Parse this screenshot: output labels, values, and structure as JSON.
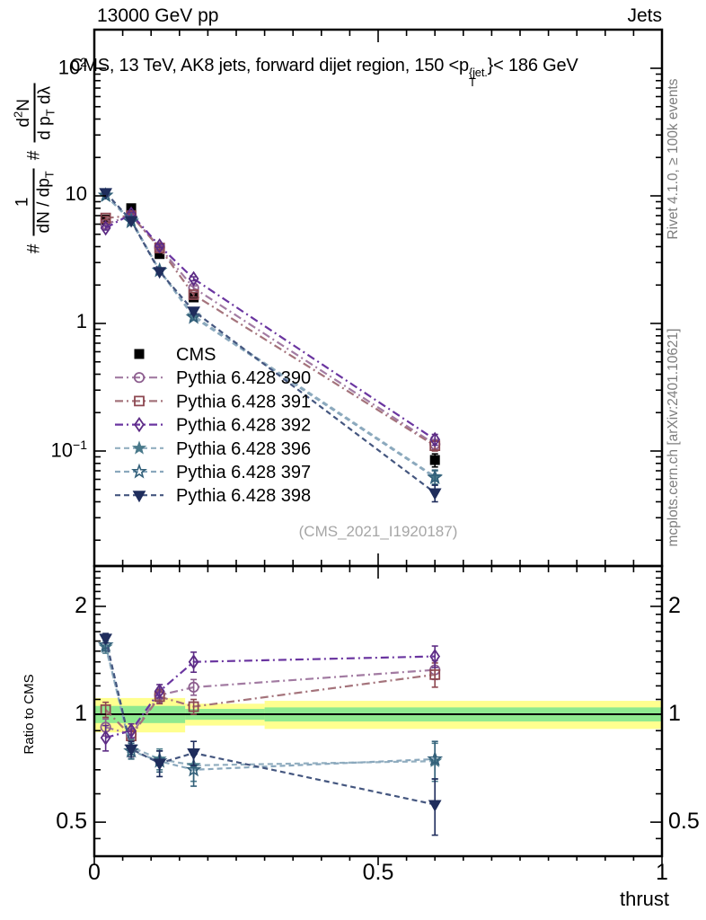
{
  "header": {
    "left": "13000 GeV pp",
    "right": "Jets"
  },
  "plot_title": {
    "prefix": "CMS, 13 TeV, AK8 jets, forward dijet region, 150 <p",
    "sup": "{jet.",
    "sub": "T",
    "suffix": "}< 186 GeV"
  },
  "ylabel_parts": {
    "h1": "#",
    "f1num": "1",
    "f1den_a": "dN / dp",
    "f1den_sub": "T",
    "h2": "#",
    "f2num_a": "d",
    "f2num_sup": "2",
    "f2num_b": "N",
    "f2den_a": "d p",
    "f2den_sub": "T",
    "f2den_b": " dλ"
  },
  "side_texts": {
    "top": "Rivet 4.1.0, ≥ 100k events",
    "bottom": "mcplots.cern.ch [arXiv:2401.10621]"
  },
  "watermark": "(CMS_2021_I1920187)",
  "main_yticks": [
    {
      "v": 100,
      "base": "10",
      "exp": "2"
    },
    {
      "v": 10,
      "base": "10",
      "exp": ""
    },
    {
      "v": 1,
      "base": "1",
      "exp": ""
    },
    {
      "v": 0.1,
      "base": "10",
      "exp": "−1"
    }
  ],
  "ratio_yticks": [
    {
      "v": 2,
      "label": "2"
    },
    {
      "v": 1,
      "label": "1"
    },
    {
      "v": 0.5,
      "label": "0.5"
    }
  ],
  "xticks": [
    {
      "v": 0,
      "label": "0"
    },
    {
      "v": 0.5,
      "label": "0.5"
    },
    {
      "v": 1,
      "label": "1"
    }
  ],
  "chart_data": {
    "type": "line",
    "title": "CMS, 13 TeV, AK8 jets, forward dijet region, 150 < p_T^{jet} < 186 GeV",
    "xlabel": "thrust",
    "ylabel": "# 1/(dN/dp_T) # d²N/(dp_T dλ)",
    "x": [
      0.02,
      0.065,
      0.115,
      0.175,
      0.6
    ],
    "xlim": [
      0,
      1
    ],
    "main_panel": {
      "yscale": "log",
      "ylim": [
        0.013,
        200
      ]
    },
    "ratio_panel": {
      "yscale": "log",
      "ylim": [
        0.4,
        2.6
      ],
      "ylabel": "Ratio to CMS",
      "bands": [
        {
          "x0": 0.0,
          "x1": 0.16,
          "yellow": [
            0.89,
            1.11
          ],
          "green": [
            0.945,
            1.055
          ]
        },
        {
          "x0": 0.16,
          "x1": 0.3,
          "yellow": [
            0.93,
            1.07
          ],
          "green": [
            0.965,
            1.035
          ]
        },
        {
          "x0": 0.3,
          "x1": 1.0,
          "yellow": [
            0.91,
            1.09
          ],
          "green": [
            0.955,
            1.045
          ]
        }
      ],
      "band_colors": {
        "yellow": "#ffff8f",
        "green": "#8fe98f"
      }
    },
    "series": [
      {
        "name": "CMS",
        "marker": "square-filled",
        "color": "#000000",
        "line_color": "#000000",
        "line": "none",
        "values": [
          6.5,
          8.0,
          3.5,
          1.6,
          0.085
        ],
        "yerr": [
          0.5,
          0.5,
          0.2,
          0.1,
          0.01
        ],
        "ratio": null,
        "ratio_err": null
      },
      {
        "name": "Pythia 6.428 390",
        "marker": "circle-open",
        "color": "#8d5e8f",
        "line_color": "#a27ba2",
        "line": "dashdot",
        "values": [
          6.0,
          7.0,
          3.95,
          1.9,
          0.113
        ],
        "yerr": [
          0.2,
          0.2,
          0.12,
          0.07,
          0.01
        ],
        "ratio": [
          0.92,
          0.88,
          1.13,
          1.19,
          1.33
        ],
        "ratio_err": [
          0.05,
          0.03,
          0.05,
          0.06,
          0.08
        ]
      },
      {
        "name": "Pythia 6.428 391",
        "marker": "square-open",
        "color": "#8d4750",
        "line_color": "#a4737b",
        "line": "dashdot",
        "values": [
          6.7,
          7.0,
          3.9,
          1.68,
          0.11
        ],
        "yerr": [
          0.2,
          0.2,
          0.12,
          0.07,
          0.01
        ],
        "ratio": [
          1.03,
          0.87,
          1.12,
          1.05,
          1.29
        ],
        "ratio_err": [
          0.05,
          0.03,
          0.05,
          0.05,
          0.1
        ]
      },
      {
        "name": "Pythia 6.428 392",
        "marker": "diamond-open",
        "color": "#5d2c85",
        "line_color": "#6a35a0",
        "line": "dashdot",
        "values": [
          5.6,
          7.2,
          4.05,
          2.24,
          0.123
        ],
        "yerr": [
          0.2,
          0.2,
          0.12,
          0.08,
          0.012
        ],
        "ratio": [
          0.86,
          0.9,
          1.16,
          1.4,
          1.45
        ],
        "ratio_err": [
          0.07,
          0.04,
          0.05,
          0.09,
          0.1
        ]
      },
      {
        "name": "Pythia 6.428 396",
        "marker": "star-filled",
        "color": "#49798a",
        "line_color": "#93afc0",
        "line": "dashed",
        "values": [
          10.0,
          6.5,
          2.6,
          1.15,
          0.063
        ],
        "yerr": [
          0.3,
          0.2,
          0.1,
          0.06,
          0.008
        ],
        "ratio": [
          1.54,
          0.81,
          0.75,
          0.72,
          0.74
        ],
        "ratio_err": [
          0.06,
          0.04,
          0.05,
          0.07,
          0.09
        ]
      },
      {
        "name": "Pythia 6.428 397",
        "marker": "star-open",
        "color": "#33607a",
        "line_color": "#8aa8bd",
        "line": "dashed",
        "values": [
          10.1,
          6.3,
          2.6,
          1.12,
          0.062
        ],
        "yerr": [
          0.3,
          0.2,
          0.1,
          0.06,
          0.008
        ],
        "ratio": [
          1.56,
          0.79,
          0.74,
          0.7,
          0.75
        ],
        "ratio_err": [
          0.06,
          0.04,
          0.05,
          0.07,
          0.09
        ]
      },
      {
        "name": "Pythia 6.428 398",
        "marker": "triangle-down-filled",
        "color": "#1f2d5c",
        "line_color": "#44567f",
        "line": "dashed",
        "values": [
          10.6,
          6.4,
          2.55,
          1.25,
          0.047
        ],
        "yerr": [
          0.3,
          0.2,
          0.1,
          0.06,
          0.007
        ],
        "ratio": [
          1.63,
          0.8,
          0.73,
          0.78,
          0.56
        ],
        "ratio_err": [
          0.05,
          0.04,
          0.06,
          0.06,
          0.1
        ]
      }
    ],
    "legend": {
      "position": "upper-left-inside",
      "items": [
        "CMS",
        "Pythia 6.428 390",
        "Pythia 6.428 391",
        "Pythia 6.428 392",
        "Pythia 6.428 396",
        "Pythia 6.428 397",
        "Pythia 6.428 398"
      ]
    }
  }
}
